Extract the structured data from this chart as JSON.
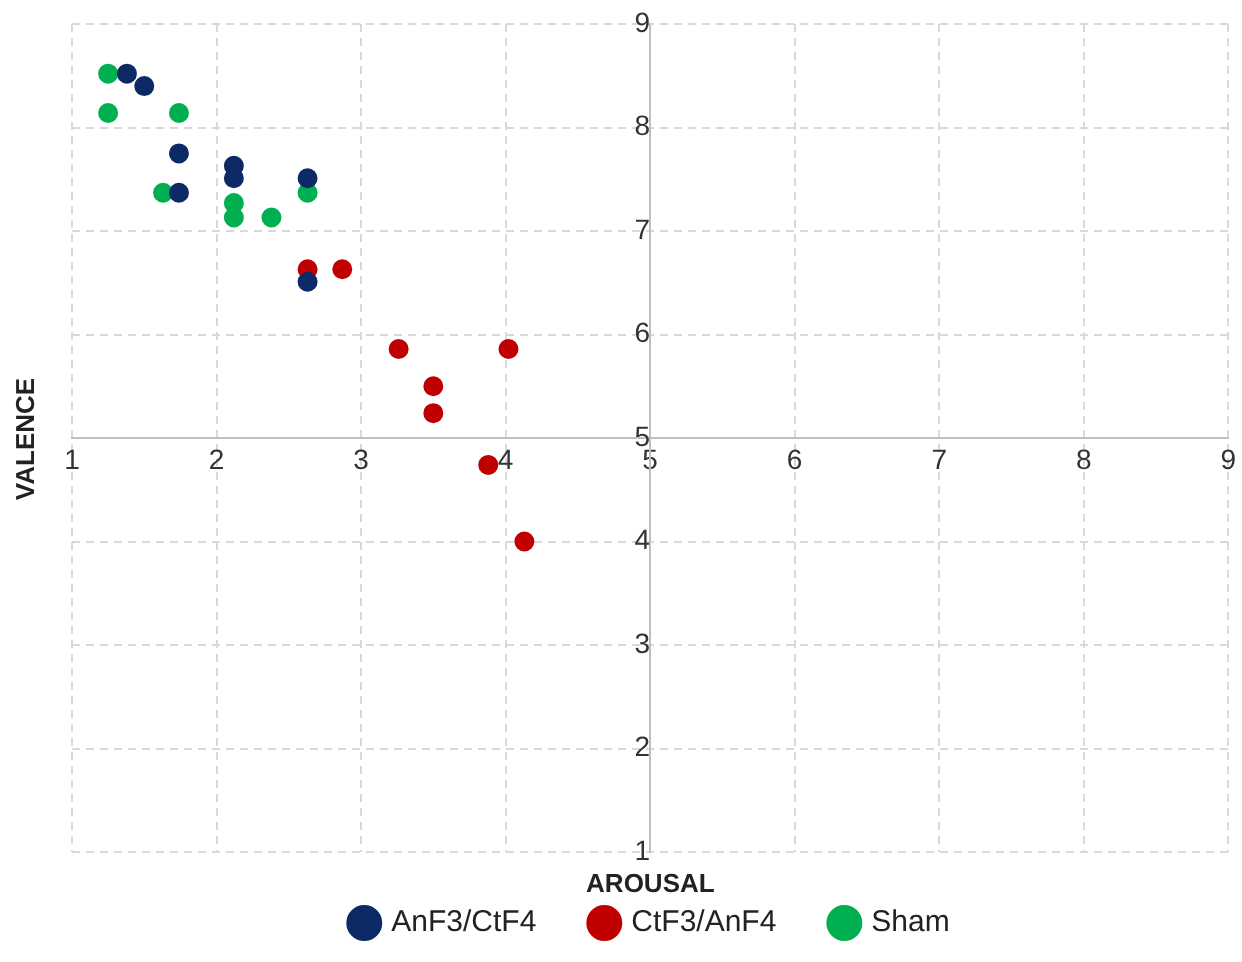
{
  "chart_data": {
    "type": "scatter",
    "xlabel": "AROUSAL",
    "ylabel": "VALENCE",
    "xlim": [
      1,
      9
    ],
    "ylim": [
      1,
      9
    ],
    "xticks": [
      1,
      2,
      3,
      4,
      5,
      6,
      7,
      8,
      9
    ],
    "yticks": [
      1,
      2,
      3,
      4,
      5,
      6,
      7,
      8,
      9
    ],
    "grid": true,
    "legend": "bottom",
    "marker": "circle",
    "series": [
      {
        "name": "AnF3/CtF4",
        "color": "#0d2a66",
        "x": [
          1.38,
          1.5,
          1.74,
          1.74,
          2.12,
          2.12,
          2.63,
          2.63
        ],
        "values": [
          8.52,
          8.4,
          7.75,
          7.37,
          7.63,
          7.51,
          7.51,
          6.51
        ]
      },
      {
        "name": "CtF3/AnF4",
        "color": "#c00000",
        "x": [
          2.63,
          2.87,
          3.26,
          4.02,
          3.5,
          3.5,
          3.88,
          4.13
        ],
        "values": [
          6.63,
          6.63,
          5.86,
          5.86,
          5.5,
          5.24,
          4.74,
          4.0
        ]
      },
      {
        "name": "Sham",
        "color": "#00b050",
        "x": [
          1.25,
          1.25,
          1.74,
          1.63,
          2.12,
          2.12,
          2.38,
          2.63
        ],
        "values": [
          8.52,
          8.14,
          8.14,
          7.37,
          7.27,
          7.13,
          7.13,
          7.37
        ]
      }
    ]
  }
}
